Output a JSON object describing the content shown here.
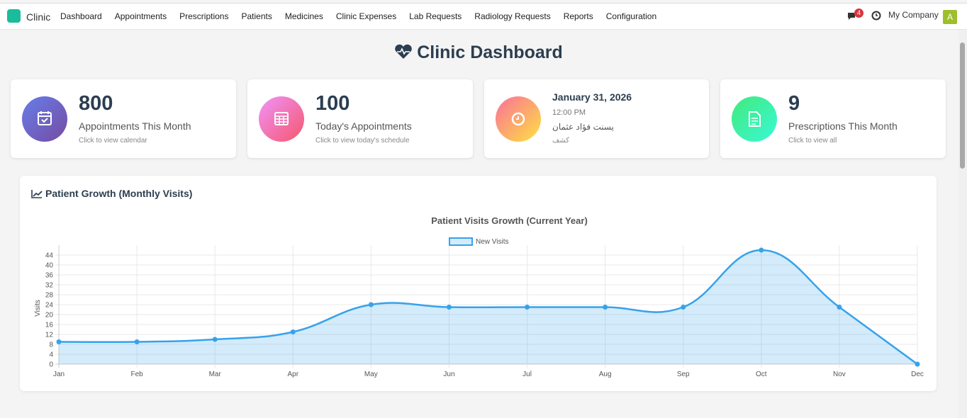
{
  "nav": {
    "brand": "Clinic",
    "menu": [
      "Dashboard",
      "Appointments",
      "Prescriptions",
      "Patients",
      "Medicines",
      "Clinic Expenses",
      "Lab Requests",
      "Radiology Requests",
      "Reports",
      "Configuration"
    ],
    "messages_badge": 4,
    "company": "My Company",
    "avatar": "A"
  },
  "header": {
    "title": "Clinic Dashboard"
  },
  "cards": [
    {
      "value": 800,
      "label": "Appointments This Month",
      "hint": "Click to view calendar"
    },
    {
      "value": 100,
      "label": "Today's Appointments",
      "hint": "Click to view today's schedule"
    },
    {
      "date": "January 31, 2026",
      "time": "12:00 PM",
      "name": "يسنت فؤاد عثمان",
      "visit_type": "كشف"
    },
    {
      "value": 9,
      "label": "Prescriptions This Month",
      "hint": "Click to view all"
    }
  ],
  "panel": {
    "title": "Patient Growth (Monthly Visits)"
  },
  "chart_data": {
    "type": "line",
    "title": "Patient Visits Growth (Current Year)",
    "y_label": "Visits",
    "categories": [
      "Jan",
      "Feb",
      "Mar",
      "Apr",
      "May",
      "Jun",
      "Jul",
      "Aug",
      "Sep",
      "Oct",
      "Nov",
      "Dec"
    ],
    "series": [
      {
        "name": "New Visits",
        "color": "#36a2eb",
        "fill": "rgba(54,162,235,0.22)",
        "values": [
          9,
          9,
          10,
          13,
          24,
          23,
          23,
          23,
          23,
          46,
          23,
          0
        ]
      }
    ],
    "ylim": [
      0,
      46
    ],
    "yticks": [
      0,
      4,
      8,
      12,
      16,
      20,
      24,
      28,
      32,
      36,
      40,
      44
    ],
    "grid": true,
    "legend": "top"
  }
}
